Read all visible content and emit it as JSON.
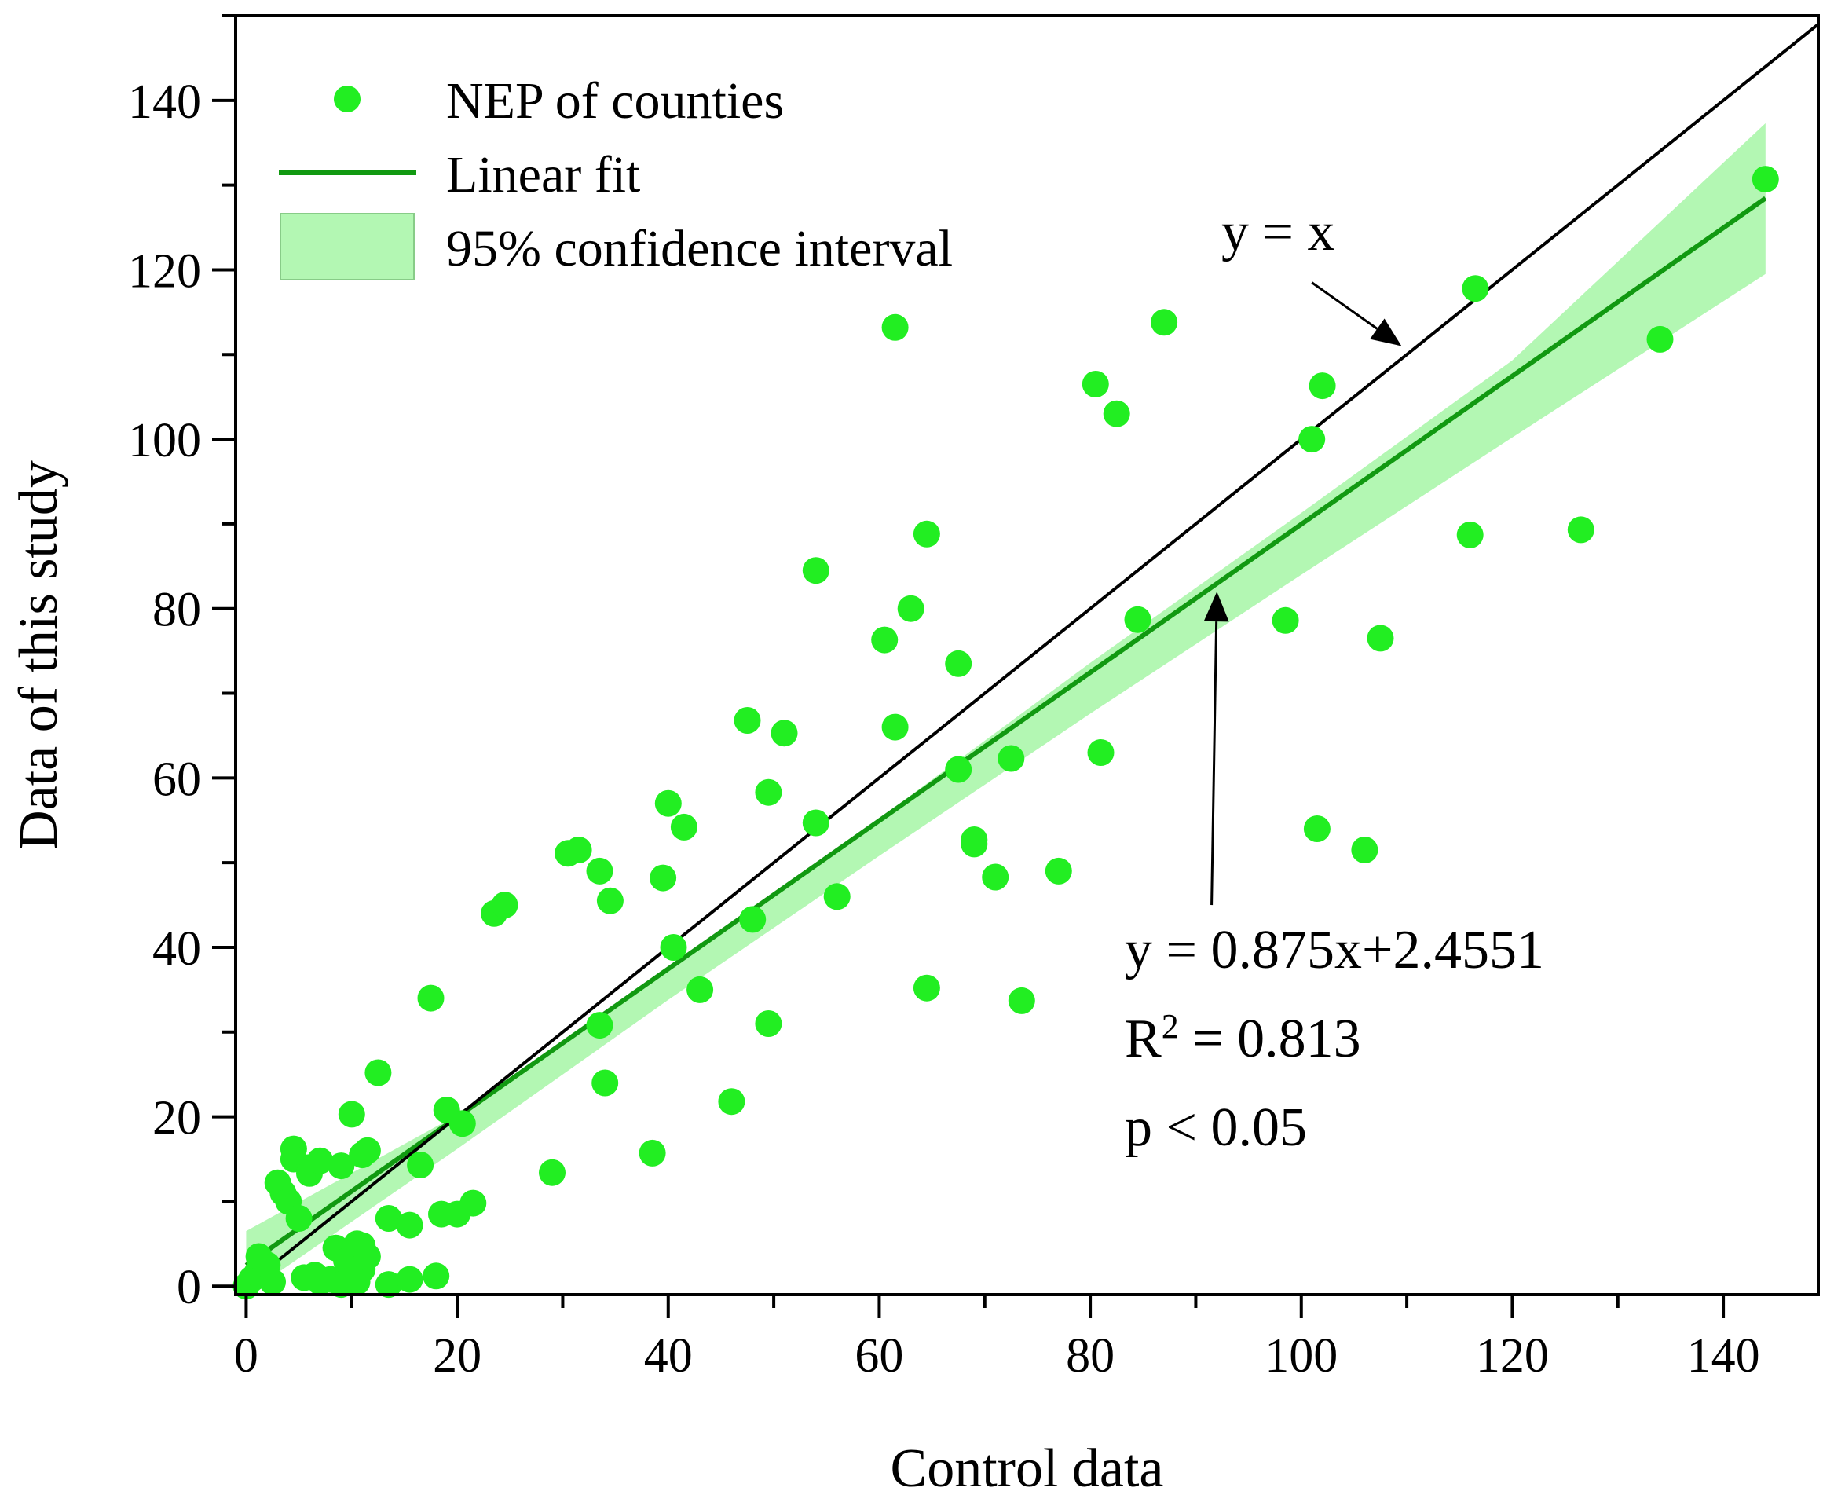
{
  "chart_data": {
    "type": "scatter",
    "xlabel": "Control data",
    "ylabel": "Data of this study",
    "xlim": [
      -1,
      149
    ],
    "ylim": [
      -1,
      150
    ],
    "xticks": [
      0,
      20,
      40,
      60,
      80,
      100,
      120,
      140
    ],
    "yticks": [
      0,
      20,
      40,
      60,
      80,
      100,
      120,
      140
    ],
    "minor_step": 10,
    "legend": {
      "position": "top-left",
      "entries": [
        "NEP of counties",
        "Linear fit",
        "95% confidence interval"
      ]
    },
    "series": [
      {
        "name": "NEP of counties",
        "kind": "scatter",
        "color": "#22ee22",
        "points": [
          [
            0,
            0
          ],
          [
            0.5,
            0.8
          ],
          [
            1,
            1.5
          ],
          [
            1.2,
            3.5
          ],
          [
            2,
            2.5
          ],
          [
            2.5,
            0.5
          ],
          [
            3,
            12.2
          ],
          [
            3.5,
            11
          ],
          [
            4,
            10
          ],
          [
            4.5,
            16.2
          ],
          [
            4.5,
            15
          ],
          [
            5,
            8
          ],
          [
            5.5,
            1
          ],
          [
            6,
            14
          ],
          [
            6,
            13.3
          ],
          [
            6.5,
            1.3
          ],
          [
            7,
            14.8
          ],
          [
            7,
            0.5
          ],
          [
            8,
            0.8
          ],
          [
            8.5,
            4.5
          ],
          [
            9,
            14.2
          ],
          [
            9,
            0.2
          ],
          [
            9.5,
            3
          ],
          [
            10,
            20.3
          ],
          [
            10.5,
            5
          ],
          [
            11,
            4.8
          ],
          [
            11.5,
            3.5
          ],
          [
            11,
            2
          ],
          [
            10.5,
            0.5
          ],
          [
            11,
            15.5
          ],
          [
            11.5,
            16
          ],
          [
            12.5,
            25.2
          ],
          [
            13.5,
            8
          ],
          [
            13.5,
            0.2
          ],
          [
            15.5,
            0.8
          ],
          [
            15.5,
            7.2
          ],
          [
            16.5,
            14.3
          ],
          [
            17.5,
            34
          ],
          [
            18,
            1.2
          ],
          [
            18.5,
            8.5
          ],
          [
            19,
            20.8
          ],
          [
            20,
            8.5
          ],
          [
            20.5,
            19.2
          ],
          [
            21.5,
            9.8
          ],
          [
            23.5,
            44
          ],
          [
            24.5,
            45
          ],
          [
            29,
            13.4
          ],
          [
            30.5,
            51.1
          ],
          [
            31.5,
            51.5
          ],
          [
            33.5,
            49
          ],
          [
            33.5,
            30.8
          ],
          [
            34,
            24
          ],
          [
            34.5,
            45.5
          ],
          [
            38.5,
            15.7
          ],
          [
            39.5,
            48.2
          ],
          [
            40,
            57
          ],
          [
            40.5,
            40
          ],
          [
            41.5,
            54.2
          ],
          [
            43,
            35
          ],
          [
            46,
            21.8
          ],
          [
            47.5,
            66.8
          ],
          [
            48,
            43.3
          ],
          [
            49.5,
            58.3
          ],
          [
            49.5,
            31
          ],
          [
            51,
            65.3
          ],
          [
            54,
            84.5
          ],
          [
            54,
            54.7
          ],
          [
            56,
            46
          ],
          [
            60.5,
            76.3
          ],
          [
            61.5,
            66
          ],
          [
            61.5,
            113.2
          ],
          [
            63,
            80
          ],
          [
            64.5,
            88.8
          ],
          [
            64.5,
            35.2
          ],
          [
            67.5,
            73.5
          ],
          [
            67.5,
            61
          ],
          [
            69,
            52.7
          ],
          [
            69,
            52.2
          ],
          [
            71,
            48.3
          ],
          [
            72.5,
            62.3
          ],
          [
            73.5,
            33.7
          ],
          [
            77,
            49
          ],
          [
            80.5,
            106.5
          ],
          [
            81,
            63
          ],
          [
            82.5,
            103
          ],
          [
            84.5,
            78.7
          ],
          [
            87,
            113.8
          ],
          [
            98.5,
            78.6
          ],
          [
            101,
            100
          ],
          [
            101.5,
            54
          ],
          [
            102,
            106.3
          ],
          [
            106,
            51.5
          ],
          [
            107.5,
            76.5
          ],
          [
            116,
            88.7
          ],
          [
            116.5,
            117.8
          ],
          [
            126.5,
            89.3
          ],
          [
            134,
            111.8
          ],
          [
            144,
            130.7
          ]
        ]
      },
      {
        "name": "Linear fit",
        "kind": "line",
        "color": "#119911",
        "x": [
          0,
          144
        ],
        "y": [
          2.4551,
          128.4551
        ]
      },
      {
        "name": "95% confidence interval",
        "kind": "band",
        "color": "#b3f7b3",
        "x": [
          0,
          20,
          40,
          60,
          80,
          100,
          120,
          144
        ],
        "lower": [
          -1,
          16.2,
          33.8,
          50.8,
          67.6,
          84,
          100.2,
          119.5
        ],
        "upper": [
          6.5,
          20.2,
          37.2,
          55.2,
          73.6,
          91.3,
          109.3,
          137.3
        ]
      },
      {
        "name": "y = x",
        "kind": "line",
        "color": "#000000",
        "x": [
          0,
          149
        ],
        "y": [
          0,
          149
        ]
      }
    ],
    "annotations": [
      {
        "id": "identity",
        "text": "y = x",
        "arrow_from": [
          101,
          118.5
        ],
        "arrow_to": [
          109.5,
          111
        ]
      },
      {
        "id": "fit",
        "lines": [
          "y = 0.875x+2.4551",
          "R",
          "2",
          " = 0.813",
          "p < 0.05"
        ],
        "arrow_from": [
          91.5,
          45
        ],
        "arrow_to": [
          92,
          82
        ]
      }
    ]
  }
}
